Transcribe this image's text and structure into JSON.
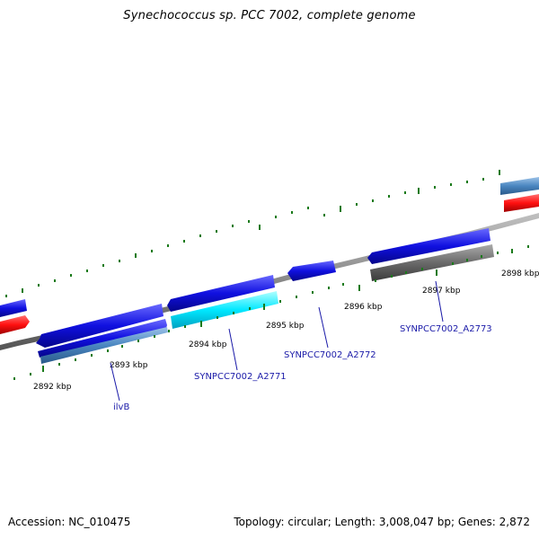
{
  "title": "Synechococcus sp. PCC 7002, complete genome",
  "footer": {
    "accession": "Accession: NC_010475",
    "summary": "Topology: circular; Length: 3,008,047 bp; Genes: 2,872"
  },
  "scale_labels": [
    "2892 kbp",
    "2893 kbp",
    "2894 kbp",
    "2895 kbp",
    "2896 kbp",
    "2897 kbp",
    "2898 kbp"
  ],
  "gene_labels": [
    "ilvB",
    "SYNPCC7002_A2771",
    "SYNPCC7002_A2772",
    "SYNPCC7002_A2773"
  ],
  "colors": {
    "forward_cds": "#1010e0",
    "reverse_cds": "#1010e0",
    "rna": "#ff1010",
    "cyan_feature": "#00e8ff",
    "steelblue_feature": "#4a86c0",
    "gray_feature": "#6a6a6a",
    "backbone": "#8a8a8a",
    "tick": "#1a7a1a",
    "label_text": "#1a1aa8"
  }
}
